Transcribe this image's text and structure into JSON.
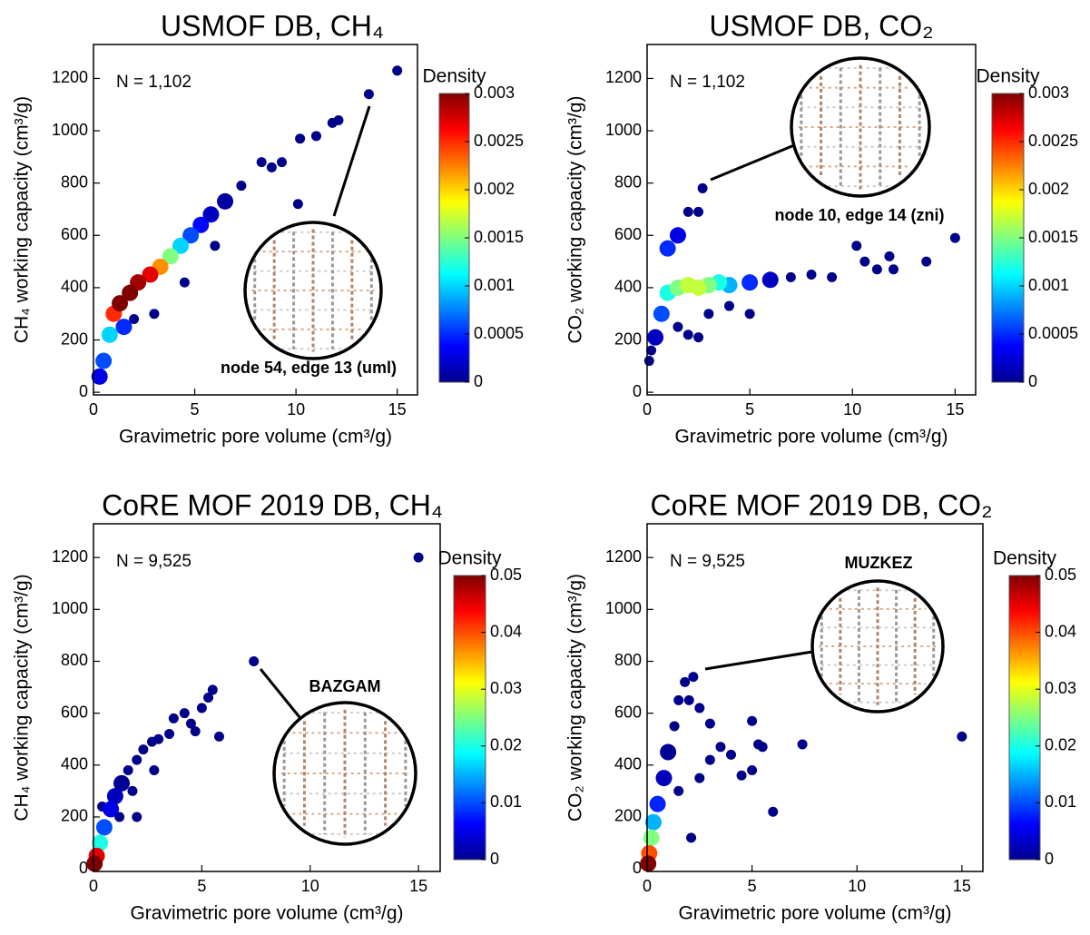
{
  "chart_data": [
    {
      "type": "scatter",
      "title": "USMOF DB, CH₄",
      "xlabel": "Gravimetric pore volume (cm³/g)",
      "ylabel": "CH₄ working capacity (cm³/g)",
      "xlim": [
        0,
        16
      ],
      "ylim": [
        -10,
        1330
      ],
      "xticks": [
        0,
        5,
        10,
        15
      ],
      "yticks": [
        0,
        200,
        400,
        600,
        800,
        1000,
        1200
      ],
      "annotations": [
        "N = 1,102",
        "node 54, edge 13 (uml)"
      ],
      "colorbar": {
        "label": "Density",
        "lim": [
          0,
          0.003
        ],
        "ticks": [
          0,
          0.0005,
          0.001,
          0.0015,
          0.002,
          0.0025,
          0.003
        ]
      },
      "x": [
        0.3,
        0.5,
        0.8,
        1.0,
        1.3,
        1.8,
        2.2,
        2.8,
        3.3,
        3.8,
        4.3,
        4.8,
        5.3,
        5.8,
        6.5,
        7.3,
        8.3,
        8.8,
        9.3,
        10.2,
        11.0,
        11.8,
        12.1,
        13.6,
        15.0,
        10.1,
        3.0,
        2.0,
        6.0,
        4.5,
        1.5
      ],
      "y": [
        60,
        120,
        220,
        300,
        340,
        380,
        420,
        450,
        480,
        520,
        560,
        600,
        640,
        680,
        730,
        790,
        880,
        860,
        880,
        970,
        980,
        1030,
        1040,
        1140,
        1230,
        720,
        300,
        280,
        560,
        420,
        250
      ],
      "density": [
        0.0003,
        0.0006,
        0.001,
        0.0025,
        0.003,
        0.003,
        0.0029,
        0.0027,
        0.0022,
        0.0015,
        0.001,
        0.0006,
        0.0004,
        0.0002,
        0.0001,
        0,
        0,
        0,
        0,
        0,
        0,
        0,
        0,
        0,
        0,
        0,
        0,
        0,
        0,
        0,
        0.0005
      ]
    },
    {
      "type": "scatter",
      "title": "USMOF DB, CO₂",
      "xlabel": "Gravimetric pore volume (cm³/g)",
      "ylabel": "CO₂ working capacity (cm³/g)",
      "xlim": [
        0,
        16
      ],
      "ylim": [
        -10,
        1330
      ],
      "xticks": [
        0,
        5,
        10,
        15
      ],
      "yticks": [
        0,
        200,
        400,
        600,
        800,
        1000,
        1200
      ],
      "annotations": [
        "N = 1,102",
        "node 10, edge 14 (zni)"
      ],
      "colorbar": {
        "label": "Density",
        "lim": [
          0,
          0.003
        ],
        "ticks": [
          0,
          0.0005,
          0.001,
          0.0015,
          0.002,
          0.0025,
          0.003
        ]
      },
      "x": [
        0.1,
        0.2,
        0.4,
        0.7,
        1,
        1.5,
        2,
        2.5,
        3,
        3.5,
        4,
        5,
        6,
        7,
        8,
        9,
        10.2,
        10.6,
        11.2,
        11.8,
        12,
        13.6,
        15,
        2.7,
        2,
        2.5,
        1.5,
        3,
        2,
        1.5,
        2.5,
        5,
        4,
        1
      ],
      "y": [
        120,
        160,
        210,
        300,
        380,
        400,
        410,
        400,
        410,
        420,
        410,
        420,
        430,
        440,
        450,
        440,
        560,
        500,
        470,
        520,
        470,
        500,
        590,
        780,
        690,
        690,
        600,
        300,
        220,
        250,
        210,
        300,
        330,
        550
      ],
      "density": [
        0,
        0,
        0.0002,
        0.0006,
        0.0012,
        0.0015,
        0.0017,
        0.0017,
        0.0015,
        0.0012,
        0.0009,
        0.0005,
        0.0002,
        0,
        0,
        0,
        0,
        0,
        0,
        0,
        0,
        0,
        0,
        0,
        0,
        0,
        0.0003,
        0,
        0,
        0,
        0,
        0,
        0,
        0.0005
      ]
    },
    {
      "type": "scatter",
      "title": "CoRE MOF 2019 DB, CH₄",
      "xlabel": "Gravimetric pore volume (cm³/g)",
      "ylabel": "CH₄ working capacity (cm³/g)",
      "xlim": [
        0,
        16
      ],
      "ylim": [
        -10,
        1330
      ],
      "xticks": [
        0,
        5,
        10,
        15
      ],
      "yticks": [
        0,
        200,
        400,
        600,
        800,
        1000,
        1200
      ],
      "annotations": [
        "N = 9,525",
        "BAZGAM"
      ],
      "colorbar": {
        "label": "Density",
        "lim": [
          0,
          0.05
        ],
        "ticks": [
          0,
          0.01,
          0.02,
          0.03,
          0.04,
          0.05
        ]
      },
      "x": [
        0.05,
        0.15,
        0.3,
        0.5,
        0.8,
        1,
        1.3,
        1.6,
        2,
        2.3,
        2.7,
        3,
        3.5,
        3.7,
        4.2,
        4.5,
        5,
        5.3,
        5.5,
        5.8,
        4.7,
        7.4,
        15,
        2,
        1.2,
        0.4,
        2.8,
        1.8
      ],
      "y": [
        20,
        50,
        100,
        160,
        230,
        280,
        330,
        380,
        420,
        460,
        490,
        500,
        520,
        580,
        600,
        560,
        620,
        660,
        690,
        510,
        530,
        800,
        1200,
        200,
        200,
        240,
        380,
        300
      ],
      "density": [
        0.05,
        0.045,
        0.02,
        0.01,
        0.005,
        0.003,
        0.001,
        0,
        0,
        0,
        0,
        0,
        0,
        0,
        0,
        0,
        0,
        0,
        0,
        0,
        0,
        0,
        0,
        0,
        0,
        0,
        0,
        0
      ]
    },
    {
      "type": "scatter",
      "title": "CoRE MOF 2019 DB, CO₂",
      "xlabel": "Gravimetric pore volume (cm³/g)",
      "ylabel": "CO₂ working capacity (cm³/g)",
      "xlim": [
        0,
        16
      ],
      "ylim": [
        -10,
        1330
      ],
      "xticks": [
        0,
        5,
        10,
        15
      ],
      "yticks": [
        0,
        200,
        400,
        600,
        800,
        1000,
        1200
      ],
      "annotations": [
        "N = 9,525",
        "MUZKEZ"
      ],
      "colorbar": {
        "label": "Density",
        "lim": [
          0,
          0.05
        ],
        "ticks": [
          0,
          0.01,
          0.02,
          0.03,
          0.04,
          0.05
        ]
      },
      "x": [
        0.05,
        0.1,
        0.2,
        0.3,
        0.5,
        0.8,
        1,
        1.3,
        1.5,
        1.8,
        2.2,
        2,
        2.5,
        3,
        3.5,
        4,
        5,
        5.3,
        5.5,
        6,
        7.4,
        15,
        2.1,
        1.5,
        2.5,
        3,
        4.5,
        5
      ],
      "y": [
        20,
        60,
        120,
        180,
        250,
        350,
        450,
        550,
        650,
        720,
        740,
        650,
        620,
        560,
        470,
        440,
        570,
        480,
        470,
        220,
        480,
        510,
        120,
        300,
        350,
        420,
        360,
        380
      ],
      "density": [
        0.05,
        0.04,
        0.025,
        0.015,
        0.008,
        0.003,
        0.001,
        0,
        0,
        0,
        0,
        0,
        0,
        0,
        0,
        0,
        0,
        0,
        0,
        0,
        0,
        0,
        0,
        0,
        0,
        0,
        0,
        0
      ]
    }
  ]
}
